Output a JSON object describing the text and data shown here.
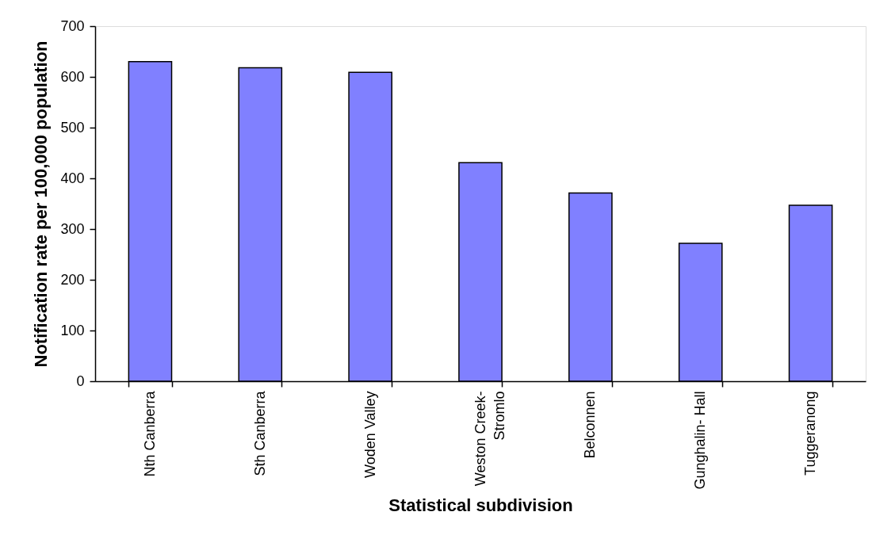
{
  "chart_data": {
    "type": "bar",
    "xlabel": "Statistical subdivision",
    "ylabel": "Notification rate per 100,000 population",
    "categories": [
      "Nth Canberra",
      "Sth Canberra",
      "Woden Valley",
      "Weston Creek- Stromlo",
      "Belconnen",
      "Gunghalin- Hall",
      "Tuggeranong"
    ],
    "values": [
      630,
      618,
      609,
      431,
      371,
      272,
      347
    ],
    "color": "#8080ff",
    "ylim": [
      0,
      700
    ],
    "yticks": [
      0,
      100,
      200,
      300,
      400,
      500,
      600,
      700
    ]
  }
}
